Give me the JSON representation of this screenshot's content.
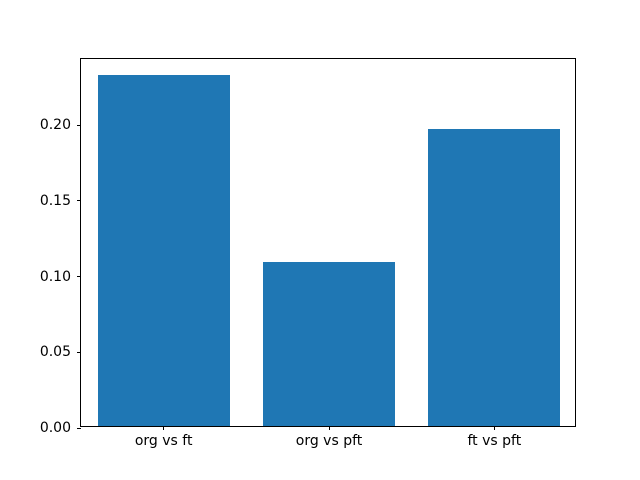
{
  "chart_data": {
    "type": "bar",
    "title": "",
    "xlabel": "",
    "ylabel": "",
    "categories": [
      "org vs ft",
      "org vs pft",
      "ft vs pft"
    ],
    "values": [
      0.232,
      0.108,
      0.196
    ],
    "ylim": [
      0,
      0.2436
    ],
    "yticks": [
      0.0,
      0.05,
      0.1,
      0.15,
      0.2
    ],
    "ytick_labels": [
      "0.00",
      "0.05",
      "0.10",
      "0.15",
      "0.20"
    ],
    "bar_color": "#1f77b4",
    "bar_width_fraction": 0.8,
    "grid": false,
    "legend_position": "none",
    "background_color": "#ffffff",
    "frame_color": "#000000"
  }
}
